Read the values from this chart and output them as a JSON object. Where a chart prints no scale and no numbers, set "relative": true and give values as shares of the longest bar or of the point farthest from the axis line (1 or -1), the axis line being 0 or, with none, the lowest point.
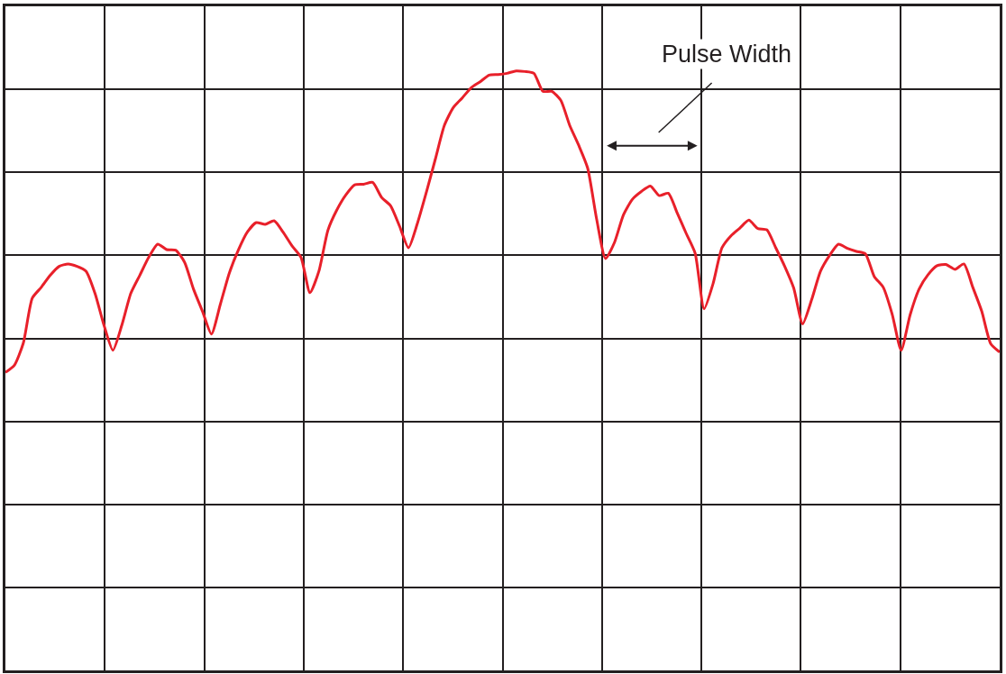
{
  "chart_data": {
    "type": "line",
    "relative": true,
    "grid": true,
    "marker": "none",
    "line_style": "solid",
    "annotations": [
      "Pulse Width"
    ],
    "categories": [
      null,
      null,
      null,
      null,
      null,
      null,
      null,
      null,
      null,
      null,
      null,
      null,
      null,
      null,
      null,
      null,
      null,
      null,
      null,
      null,
      null,
      null,
      null,
      null,
      null,
      null,
      null,
      null,
      null,
      null,
      null,
      null,
      null,
      null,
      null,
      null,
      null,
      null,
      null,
      null,
      null,
      null,
      null,
      null,
      null,
      null,
      null,
      null,
      null,
      null,
      null,
      null,
      null,
      null,
      null,
      null,
      null,
      null,
      null,
      null,
      null,
      null,
      null,
      null,
      null,
      null,
      null,
      null,
      null,
      null,
      null,
      null,
      null,
      null,
      null,
      null,
      null,
      null,
      null,
      null,
      null,
      null,
      null,
      null,
      null,
      null,
      null,
      null,
      null,
      null,
      null,
      null,
      null,
      null,
      null,
      null,
      null,
      null,
      null,
      null,
      null,
      null,
      null,
      null,
      null,
      null,
      null,
      null,
      null,
      null,
      null,
      null
    ],
    "series": [
      {
        "color": "#e8202a",
        "values": [
          0.497,
          0.509,
          0.546,
          0.621,
          0.639,
          0.659,
          0.674,
          0.678,
          0.674,
          0.666,
          0.629,
          0.576,
          0.534,
          0.576,
          0.629,
          0.659,
          0.689,
          0.711,
          0.702,
          0.701,
          0.681,
          0.636,
          0.599,
          0.561,
          0.611,
          0.663,
          0.701,
          0.731,
          0.747,
          0.744,
          0.75,
          0.731,
          0.708,
          0.689,
          0.63,
          0.666,
          0.734,
          0.768,
          0.793,
          0.81,
          0.811,
          0.814,
          0.789,
          0.775,
          0.741,
          0.705,
          0.746,
          0.798,
          0.853,
          0.909,
          0.939,
          0.955,
          0.972,
          0.982,
          0.993,
          0.994,
          0.996,
          1,
          0.999,
          0.996,
          0.966,
          0.966,
          0.951,
          0.909,
          0.876,
          0.838,
          0.753,
          0.687,
          0.714,
          0.76,
          0.786,
          0.799,
          0.808,
          0.792,
          0.796,
          0.763,
          0.729,
          0.696,
          0.603,
          0.645,
          0.705,
          0.725,
          0.738,
          0.751,
          0.737,
          0.735,
          0.705,
          0.674,
          0.638,
          0.578,
          0.618,
          0.666,
          0.692,
          0.711,
          0.704,
          0.699,
          0.695,
          0.657,
          0.639,
          0.594,
          0.534,
          0.593,
          0.636,
          0.66,
          0.675,
          0.677,
          0.669,
          0.678,
          0.639,
          0.599,
          0.545,
          0.531
        ]
      }
    ]
  }
}
